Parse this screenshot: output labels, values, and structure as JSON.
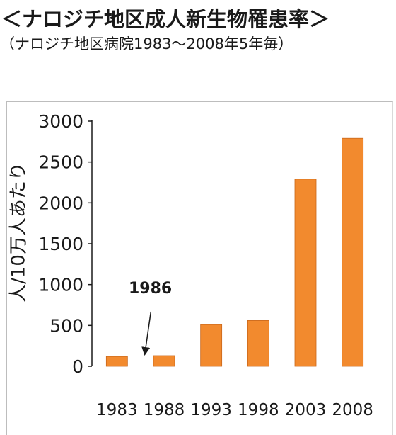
{
  "header": {
    "title": "＜ナロジチ地区成人新生物罹患率＞",
    "subtitle": "（ナロジチ地区病院1983～2008年5年毎）"
  },
  "chart_data": {
    "type": "bar",
    "categories": [
      "1983",
      "1988",
      "1993",
      "1998",
      "2003",
      "2008"
    ],
    "values": [
      120,
      130,
      510,
      560,
      2290,
      2790
    ],
    "ylabel": "人/10万人あたり",
    "xlabel": "",
    "ylim": [
      0,
      3000
    ],
    "yticks": [
      0,
      500,
      1000,
      1500,
      2000,
      2500,
      3000
    ],
    "bar_color": "#f28a2e",
    "annotation": {
      "text": "1986",
      "points_to_x": "1986"
    }
  }
}
